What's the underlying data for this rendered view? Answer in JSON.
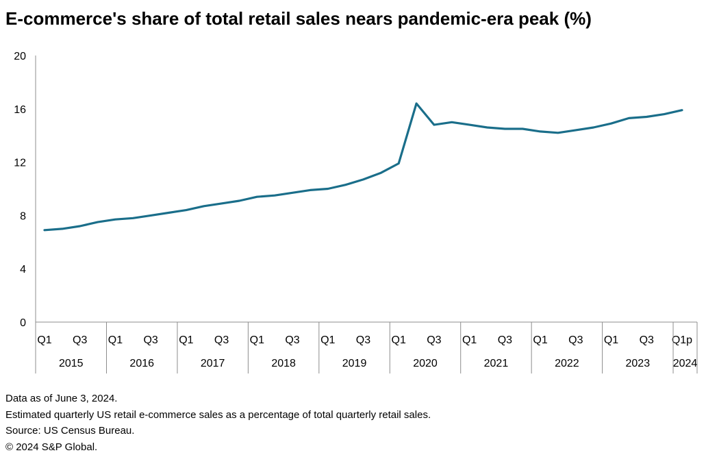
{
  "title": "E-commerce's share of total retail sales nears pandemic-era peak (%)",
  "colors": {
    "line": "#1a6e8a",
    "axis": "#8c8c8c",
    "text": "#000000"
  },
  "chart_data": {
    "type": "line",
    "ylim": [
      0,
      20
    ],
    "yticks": [
      "0",
      "4",
      "8",
      "12",
      "16",
      "20"
    ],
    "grid": false,
    "quarter_labels": [
      "Q1",
      "",
      "Q3",
      "",
      "Q1",
      "",
      "Q3",
      "",
      "Q1",
      "",
      "Q3",
      "",
      "Q1",
      "",
      "Q3",
      "",
      "Q1",
      "",
      "Q3",
      "",
      "Q1",
      "",
      "Q3",
      "",
      "Q1",
      "",
      "Q3",
      "",
      "Q1",
      "",
      "Q3",
      "",
      "Q1",
      "",
      "Q3",
      "",
      "Q1p"
    ],
    "years": [
      "2015",
      "2016",
      "2017",
      "2018",
      "2019",
      "2020",
      "2021",
      "2022",
      "2023",
      "2024"
    ],
    "x": [
      "2015 Q1",
      "2015 Q2",
      "2015 Q3",
      "2015 Q4",
      "2016 Q1",
      "2016 Q2",
      "2016 Q3",
      "2016 Q4",
      "2017 Q1",
      "2017 Q2",
      "2017 Q3",
      "2017 Q4",
      "2018 Q1",
      "2018 Q2",
      "2018 Q3",
      "2018 Q4",
      "2019 Q1",
      "2019 Q2",
      "2019 Q3",
      "2019 Q4",
      "2020 Q1",
      "2020 Q2",
      "2020 Q3",
      "2020 Q4",
      "2021 Q1",
      "2021 Q2",
      "2021 Q3",
      "2021 Q4",
      "2022 Q1",
      "2022 Q2",
      "2022 Q3",
      "2022 Q4",
      "2023 Q1",
      "2023 Q2",
      "2023 Q3",
      "2023 Q4",
      "2024 Q1p"
    ],
    "values": [
      6.9,
      7.0,
      7.2,
      7.5,
      7.7,
      7.8,
      8.0,
      8.2,
      8.4,
      8.7,
      8.9,
      9.1,
      9.4,
      9.5,
      9.7,
      9.9,
      10.0,
      10.3,
      10.7,
      11.2,
      11.9,
      16.4,
      14.8,
      15.0,
      14.8,
      14.6,
      14.5,
      14.5,
      14.3,
      14.2,
      14.4,
      14.6,
      14.9,
      15.3,
      15.4,
      15.6,
      15.9
    ]
  },
  "notes": [
    "Data as of June 3, 2024.",
    "Estimated quarterly US retail e-commerce sales as a percentage of total quarterly retail sales.",
    "Source: US Census Bureau.",
    "© 2024 S&P Global."
  ]
}
